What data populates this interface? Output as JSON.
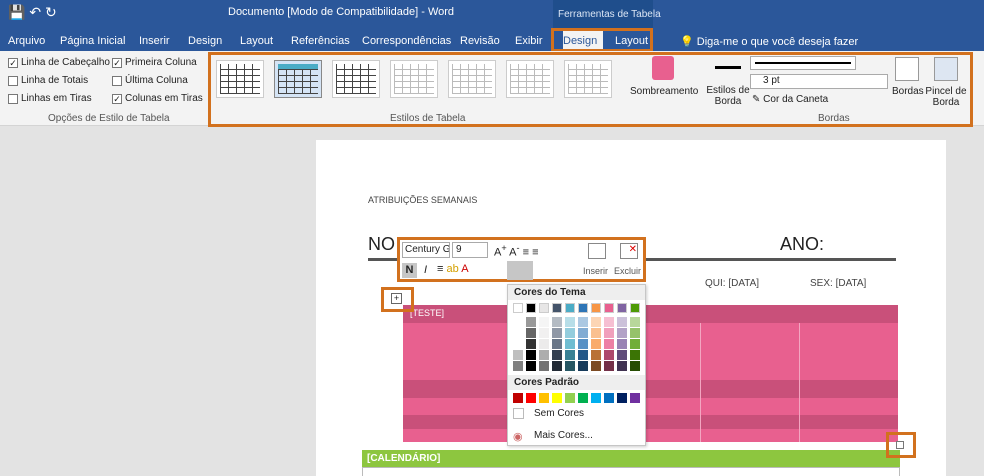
{
  "title_bar": {
    "document_title": "Documento [Modo de Compatibilidade] - Word",
    "context_tab_group": "Ferramentas de Tabela"
  },
  "tabs": [
    "Arquivo",
    "Página Inicial",
    "Inserir",
    "Design",
    "Layout",
    "Referências",
    "Correspondências",
    "Revisão",
    "Exibir"
  ],
  "context_tabs": [
    "Design",
    "Layout"
  ],
  "tell_me": "Diga-me o que você deseja fazer",
  "ribbon": {
    "style_options": {
      "label": "Opções de Estilo de Tabela",
      "items": [
        {
          "label": "Linha de Cabeçalho",
          "checked": true
        },
        {
          "label": "Primeira Coluna",
          "checked": true
        },
        {
          "label": "Linha de Totais",
          "checked": false
        },
        {
          "label": "Última Coluna",
          "checked": false
        },
        {
          "label": "Linhas em Tiras",
          "checked": false
        },
        {
          "label": "Colunas em Tiras",
          "checked": true
        }
      ]
    },
    "table_styles": {
      "label": "Estilos de Tabela"
    },
    "shading": "Sombreamento",
    "borders": {
      "label": "Bordas",
      "border_styles": "Estilos de Borda",
      "pen_weight": "3 pt",
      "pen_color": "Cor da Caneta",
      "borders_button": "Bordas",
      "border_painter": "Pincel de Borda"
    }
  },
  "document": {
    "heading": "ATRIBUIÇÕES SEMANAIS",
    "name_label": "NO",
    "year_label": "ANO:",
    "days": [
      "QUI: [DATA]",
      "SEX: [DATA]"
    ],
    "table_cell": "[TESTE]",
    "calendar": "[CALENDÁRIO]"
  },
  "mini_toolbar": {
    "font": "Century G",
    "size": "9",
    "bold": "N",
    "italic": "I",
    "insert": "Inserir",
    "delete": "Excluir"
  },
  "color_menu": {
    "theme_header": "Cores do Tema",
    "theme_colors": [
      "#ffffff",
      "#000000",
      "#e7e6e6",
      "#44546a",
      "#4bacc6",
      "#2e75b6",
      "#f79646",
      "#e8608f",
      "#8064a2",
      "#4e9a06"
    ],
    "standard_header": "Cores Padrão",
    "standard_colors": [
      "#c00000",
      "#ff0000",
      "#ffc000",
      "#ffff00",
      "#92d050",
      "#00b050",
      "#00b0f0",
      "#0070c0",
      "#002060",
      "#7030a0"
    ],
    "no_color": "Sem Cores",
    "more_colors": "Mais Cores..."
  }
}
